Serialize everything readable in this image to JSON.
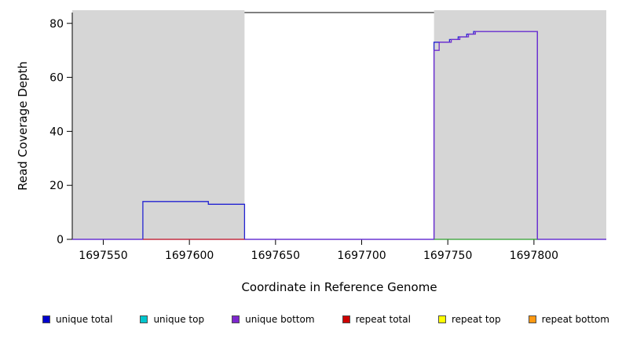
{
  "chart_data": {
    "type": "line",
    "title": "",
    "xlabel": "Coordinate in Reference Genome",
    "ylabel": "Read Coverage Depth",
    "xlim": [
      1697532,
      1697842
    ],
    "ylim": [
      0,
      84
    ],
    "x_ticks": [
      1697550,
      1697600,
      1697650,
      1697700,
      1697750,
      1697800
    ],
    "y_ticks": [
      0,
      20,
      40,
      60,
      80
    ],
    "grid": false,
    "plot_background": "#ffffff",
    "shaded_region_color": "#d6d6d6",
    "shaded_regions": [
      {
        "x0": 1697532,
        "x1": 1697632,
        "label": "left-gray-block"
      },
      {
        "x0": 1697742,
        "x1": 1697842,
        "label": "right-gray-block"
      }
    ],
    "series": [
      {
        "name": "unique total",
        "color": "#2323d2",
        "points": [
          [
            1697532,
            0
          ],
          [
            1697573,
            0
          ],
          [
            1697573,
            14
          ],
          [
            1697611,
            14
          ],
          [
            1697611,
            13
          ],
          [
            1697632,
            13
          ],
          [
            1697632,
            0
          ],
          [
            1697742,
            0
          ],
          [
            1697742,
            73
          ],
          [
            1697751,
            73
          ],
          [
            1697751,
            74
          ],
          [
            1697756,
            74
          ],
          [
            1697756,
            75
          ],
          [
            1697761,
            75
          ],
          [
            1697761,
            76
          ],
          [
            1697765,
            76
          ],
          [
            1697765,
            77
          ],
          [
            1697802,
            77
          ],
          [
            1697802,
            0
          ],
          [
            1697842,
            0
          ]
        ]
      },
      {
        "name": "unique bottom",
        "color": "#6f2fd0",
        "points": [
          [
            1697532,
            0
          ],
          [
            1697742,
            0
          ],
          [
            1697742,
            70
          ],
          [
            1697745,
            70
          ],
          [
            1697745,
            73
          ],
          [
            1697752,
            73
          ],
          [
            1697752,
            74
          ],
          [
            1697757,
            74
          ],
          [
            1697757,
            75
          ],
          [
            1697762,
            75
          ],
          [
            1697762,
            76
          ],
          [
            1697766,
            76
          ],
          [
            1697766,
            77
          ],
          [
            1697802,
            77
          ],
          [
            1697802,
            0
          ],
          [
            1697842,
            0
          ]
        ]
      },
      {
        "name": "repeat total",
        "color": "#cd2626",
        "points": [
          [
            1697573,
            0
          ],
          [
            1697632,
            0
          ]
        ]
      },
      {
        "name": "green baseline",
        "color": "#2e9e2e",
        "points": [
          [
            1697742,
            0
          ],
          [
            1697802,
            0
          ]
        ]
      }
    ],
    "legend": [
      {
        "label": "unique total",
        "color": "#0000cd"
      },
      {
        "label": "unique top",
        "color": "#00c5cd"
      },
      {
        "label": "unique bottom",
        "color": "#7d26cd"
      },
      {
        "label": "repeat total",
        "color": "#cd0000"
      },
      {
        "label": "repeat top",
        "color": "#ffff00"
      },
      {
        "label": "repeat bottom",
        "color": "#ff9912"
      }
    ],
    "legend_position": "bottom"
  }
}
